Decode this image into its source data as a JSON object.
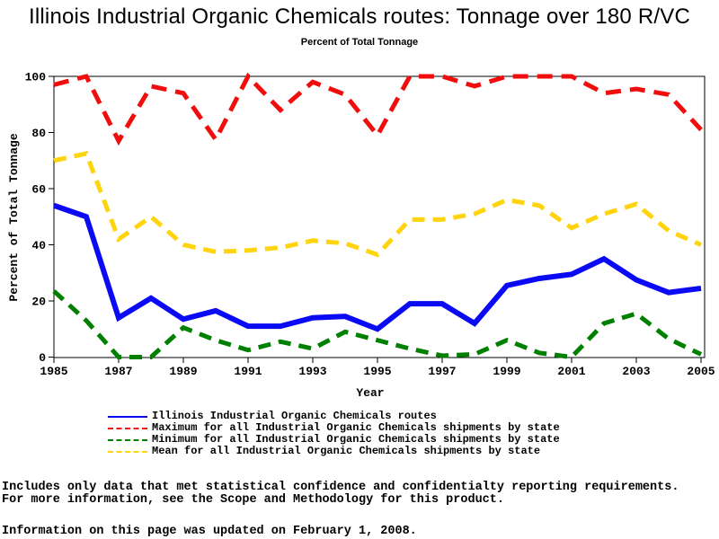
{
  "title": "Illinois Industrial Organic Chemicals routes: Tonnage over 180 R/VC",
  "subtitle": "Percent of Total Tonnage",
  "chart_data": {
    "type": "line",
    "x": [
      1985,
      1986,
      1987,
      1988,
      1989,
      1990,
      1991,
      1992,
      1993,
      1994,
      1995,
      1996,
      1997,
      1998,
      1999,
      2000,
      2001,
      2002,
      2003,
      2004,
      2005
    ],
    "x_ticks": [
      1985,
      1987,
      1989,
      1991,
      1993,
      1995,
      1997,
      1999,
      2001,
      2003,
      2005
    ],
    "y_ticks": [
      0,
      20,
      40,
      60,
      80,
      100
    ],
    "ylim": [
      0,
      100
    ],
    "xlabel": "Year",
    "ylabel": "Percent of Total Tonnage",
    "grid": false,
    "legend_position": "bottom",
    "series": [
      {
        "key": "illinois",
        "name": "Illinois Industrial Organic Chemicals routes",
        "color": "#0a0af5",
        "style": "solid",
        "values": [
          54,
          50,
          14,
          21,
          13.5,
          16.5,
          11,
          11,
          14,
          14.5,
          10,
          19,
          19,
          12,
          25.5,
          28,
          29.5,
          35,
          27.5,
          23,
          24.5
        ]
      },
      {
        "key": "maximum",
        "name": "Maximum for all Industrial Organic Chemicals shipments by state",
        "color": "#f20d0d",
        "style": "dashed",
        "values": [
          97,
          100,
          77,
          96.5,
          94,
          77.5,
          100,
          88,
          98,
          93.5,
          79,
          100,
          100,
          96.5,
          100,
          100,
          100,
          94,
          95.5,
          93.5,
          81
        ]
      },
      {
        "key": "minimum",
        "name": "Minimum for all Industrial Organic Chemicals shipments by state",
        "color": "#008000",
        "style": "dashed",
        "values": [
          23.5,
          13,
          0,
          0,
          10.5,
          6,
          2.5,
          5.5,
          3,
          9,
          6,
          3,
          0.5,
          1,
          6,
          1.5,
          0,
          12,
          15.5,
          6.5,
          1
        ]
      },
      {
        "key": "mean",
        "name": "Mean for all Industrial Organic Chemicals shipments by state",
        "color": "#ffd40d",
        "style": "dashed",
        "values": [
          70,
          72.5,
          42,
          50,
          40,
          37.5,
          38,
          39,
          41.5,
          40.5,
          36.5,
          49,
          49,
          51,
          56,
          54,
          46,
          51,
          54.5,
          45,
          40
        ]
      }
    ]
  },
  "footnotes": {
    "line1": "Includes only data that met statistical confidence and confidentialty reporting requirements.",
    "line2": "For more information, see the Scope and Methodology for this product.",
    "line3": "Information on this page was updated on February 1, 2008."
  }
}
